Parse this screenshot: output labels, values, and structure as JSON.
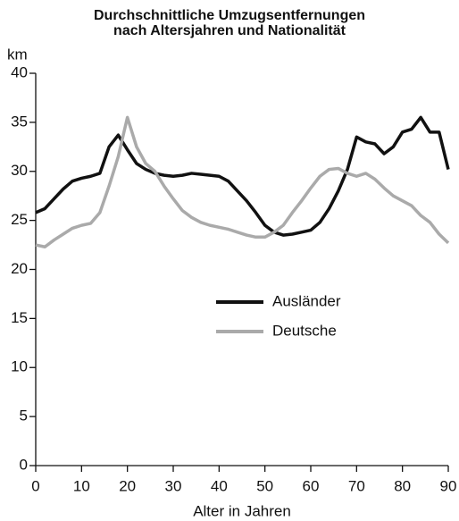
{
  "chart_data": {
    "type": "line",
    "title": [
      "Durchschnittliche Umzugsentfernungen",
      "nach Altersjahren und Nationalität"
    ],
    "ylabel": "km",
    "xlabel": "Alter in Jahren",
    "x": [
      0,
      2,
      4,
      6,
      8,
      10,
      12,
      14,
      16,
      18,
      20,
      22,
      24,
      26,
      28,
      30,
      32,
      34,
      36,
      38,
      40,
      42,
      44,
      46,
      48,
      50,
      52,
      54,
      56,
      58,
      60,
      62,
      64,
      66,
      68,
      70,
      72,
      74,
      76,
      78,
      80,
      82,
      84,
      86,
      88,
      90
    ],
    "series": [
      {
        "name": "Ausländer",
        "color": "#111111",
        "values": [
          25.8,
          26.2,
          27.2,
          28.2,
          29.0,
          29.3,
          29.5,
          29.8,
          32.5,
          33.7,
          32.2,
          30.8,
          30.2,
          29.8,
          29.6,
          29.5,
          29.6,
          29.8,
          29.7,
          29.6,
          29.5,
          29.0,
          28.0,
          27.0,
          25.8,
          24.5,
          23.8,
          23.5,
          23.6,
          23.8,
          24.0,
          24.8,
          26.2,
          28.0,
          30.2,
          33.5,
          33.0,
          32.8,
          31.8,
          32.5,
          34.0,
          34.3,
          35.5,
          34.0,
          34.0,
          30.2
        ]
      },
      {
        "name": "Deutsche",
        "color": "#aaaaaa",
        "values": [
          22.5,
          22.3,
          23.0,
          23.6,
          24.2,
          24.5,
          24.7,
          25.8,
          28.5,
          31.5,
          35.5,
          32.5,
          30.8,
          30.0,
          28.5,
          27.2,
          26.0,
          25.3,
          24.8,
          24.5,
          24.3,
          24.1,
          23.8,
          23.5,
          23.3,
          23.3,
          23.8,
          24.5,
          25.8,
          27.0,
          28.3,
          29.5,
          30.2,
          30.3,
          29.8,
          29.5,
          29.8,
          29.2,
          28.3,
          27.5,
          27.0,
          26.5,
          25.5,
          24.8,
          23.6,
          22.7
        ]
      }
    ],
    "xlim": [
      0,
      90
    ],
    "xticks": [
      0,
      10,
      20,
      30,
      40,
      50,
      60,
      70,
      80,
      90
    ],
    "ylim": [
      0,
      40
    ],
    "yticks": [
      0,
      5,
      10,
      15,
      20,
      25,
      30,
      35,
      40
    ],
    "grid": false,
    "legend": "center-right"
  }
}
